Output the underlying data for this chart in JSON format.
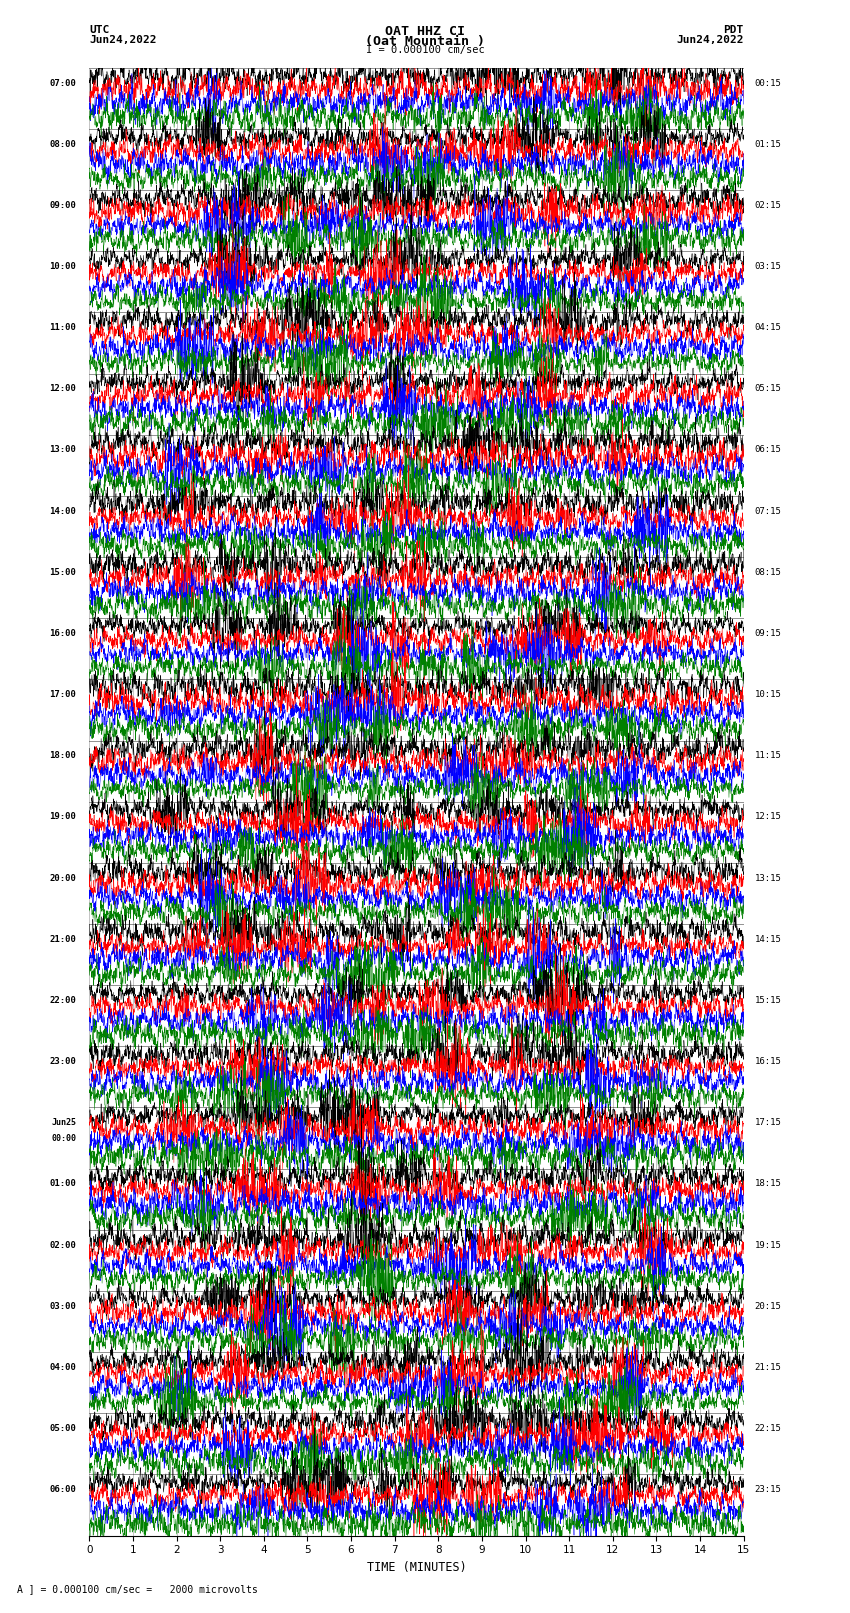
{
  "title_line1": "OAT HHZ CI",
  "title_line2": "(Oat Mountain )",
  "title_scale": "I = 0.000100 cm/sec",
  "left_header_1": "UTC",
  "left_header_2": "Jun24,2022",
  "right_header_1": "PDT",
  "right_header_2": "Jun24,2022",
  "xlabel": "TIME (MINUTES)",
  "footer": "A ] = 0.000100 cm/sec =   2000 microvolts",
  "num_rows": 24,
  "colors": [
    "black",
    "red",
    "blue",
    "green"
  ],
  "bg_color": "white",
  "xlim": [
    0,
    15
  ],
  "xticks": [
    0,
    1,
    2,
    3,
    4,
    5,
    6,
    7,
    8,
    9,
    10,
    11,
    12,
    13,
    14,
    15
  ],
  "figsize": [
    8.5,
    16.13
  ],
  "dpi": 100,
  "left_times": [
    "07:00",
    "08:00",
    "09:00",
    "10:00",
    "11:00",
    "12:00",
    "13:00",
    "14:00",
    "15:00",
    "16:00",
    "17:00",
    "18:00",
    "19:00",
    "20:00",
    "21:00",
    "22:00",
    "23:00",
    "Jun25\n00:00",
    "01:00",
    "02:00",
    "03:00",
    "04:00",
    "05:00",
    "06:00"
  ],
  "right_times": [
    "00:15",
    "01:15",
    "02:15",
    "03:15",
    "04:15",
    "05:15",
    "06:15",
    "07:15",
    "08:15",
    "09:15",
    "10:15",
    "11:15",
    "12:15",
    "13:15",
    "14:15",
    "15:15",
    "16:15",
    "17:15",
    "18:15",
    "19:15",
    "20:15",
    "21:15",
    "22:15",
    "23:15"
  ],
  "seed": 42,
  "trace_amplitude": 0.38,
  "n_points": 2700,
  "lw": 0.35
}
